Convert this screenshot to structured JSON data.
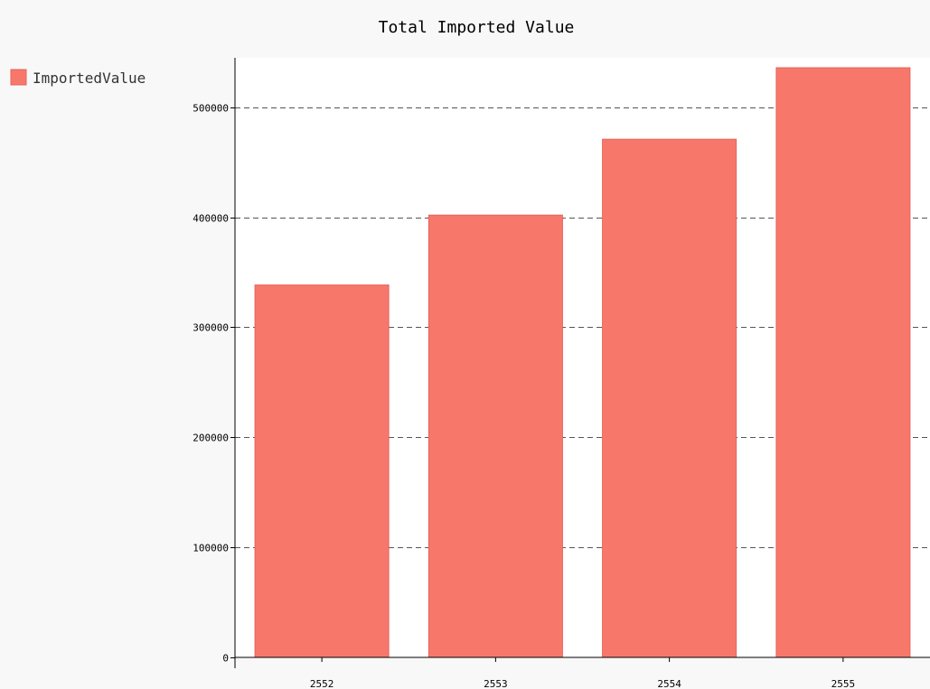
{
  "chart_data": {
    "type": "bar",
    "title": "Total Imported Value",
    "categories": [
      "2552",
      "2553",
      "2554",
      "2555"
    ],
    "series": [
      {
        "name": "ImportedValue",
        "values": [
          338500,
          402000,
          471000,
          536000
        ],
        "color": "#f7786b"
      }
    ],
    "ylim": [
      0,
      545000
    ],
    "yticks": [
      0,
      100000,
      200000,
      300000,
      400000,
      500000
    ],
    "ytick_labels": [
      "0",
      "100000",
      "200000",
      "300000",
      "400000",
      "500000"
    ],
    "grid": true,
    "legend": "top-left"
  },
  "colors": {
    "background": "#f8f8f8",
    "plot_background": "#ffffff",
    "bar_fill": "#f7786b",
    "bar_stroke": "#e8625a",
    "grid": "#555555"
  }
}
